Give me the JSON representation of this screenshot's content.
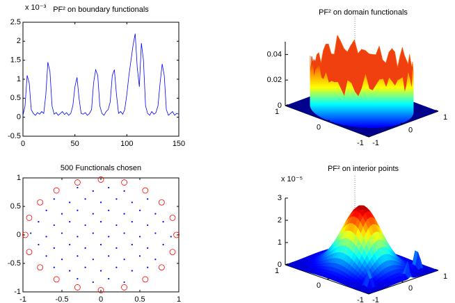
{
  "chart_data": [
    {
      "type": "line",
      "title": "PF² on boundary functionals",
      "y_multiplier": "x 10⁻³",
      "x": [
        0,
        2,
        4,
        6,
        8,
        10,
        12,
        14,
        16,
        18,
        20,
        22,
        24,
        26,
        28,
        30,
        32,
        34,
        36,
        38,
        40,
        42,
        44,
        46,
        48,
        50,
        52,
        54,
        56,
        58,
        60,
        62,
        64,
        66,
        68,
        70,
        72,
        74,
        76,
        78,
        80,
        82,
        84,
        86,
        88,
        90,
        92,
        94,
        96,
        98,
        100,
        102,
        104,
        106,
        108,
        110,
        112,
        114,
        116,
        118,
        120,
        122,
        124,
        126,
        128,
        130,
        132,
        134,
        136,
        138,
        140,
        142,
        144,
        146,
        148,
        150
      ],
      "series": [
        {
          "color": "#0000ff",
          "values": [
            0.05,
            0.3,
            1.1,
            0.9,
            0.2,
            0.1,
            0.05,
            0.12,
            0.08,
            0.15,
            0.1,
            0.6,
            1.45,
            1.2,
            0.3,
            0.08,
            0.12,
            0.05,
            0.1,
            0.15,
            0.07,
            0.12,
            0.05,
            0.1,
            0.3,
            0.8,
            1.05,
            0.5,
            0.1,
            0.08,
            0.12,
            0.05,
            0.1,
            0.2,
            0.9,
            1.25,
            1.1,
            0.3,
            0.1,
            0.05,
            0.15,
            0.2,
            0.4,
            1.1,
            1.25,
            0.6,
            0.1,
            0.15,
            0.08,
            0.2,
            0.6,
            1.1,
            1.5,
            1.9,
            2.2,
            1.3,
            0.8,
            1.95,
            1.5,
            0.3,
            0.1,
            0.05,
            0.15,
            0.08,
            0.12,
            0.3,
            0.9,
            1.4,
            1.1,
            0.2,
            0.05,
            0.1,
            0.15,
            0.05,
            0.1,
            0.08
          ]
        }
      ],
      "xlim": [
        0,
        150
      ],
      "xticks": [
        0,
        50,
        100,
        150
      ],
      "ylim": [
        -0.5,
        2.5
      ],
      "yticks": [
        -0.5,
        0,
        0.5,
        1,
        1.5,
        2,
        2.5
      ]
    },
    {
      "type": "surface3d",
      "title": "PF² on domain functionals",
      "xlim": [
        -1,
        1
      ],
      "xticks": [
        -1,
        0,
        1
      ],
      "ylim": [
        -1,
        1
      ],
      "yticks": [
        -1,
        0,
        1
      ],
      "zlim": [
        0,
        0.05
      ],
      "zticks": [
        0,
        0.02,
        0.04
      ]
    },
    {
      "type": "scatter",
      "title": "500 Functionals chosen",
      "series": [
        {
          "color": "#0000ff",
          "marker": "dot",
          "x": [
            -0.3,
            -0.1,
            0.1,
            0.3,
            -0.6,
            -0.4,
            -0.2,
            0,
            0.2,
            0.4,
            0.6,
            -0.7,
            -0.5,
            -0.3,
            -0.1,
            0.1,
            0.3,
            0.5,
            0.7,
            -0.8,
            -0.6,
            -0.4,
            -0.2,
            0,
            0.2,
            0.4,
            0.6,
            0.8,
            -0.9,
            -0.7,
            -0.5,
            -0.3,
            -0.1,
            0.1,
            0.3,
            0.5,
            0.7,
            0.9,
            -0.8,
            -0.6,
            -0.4,
            -0.2,
            0,
            0.2,
            0.4,
            0.6,
            0.8,
            -0.7,
            -0.5,
            -0.3,
            -0.1,
            0.1,
            0.3,
            0.5,
            0.7,
            -0.6,
            -0.4,
            -0.2,
            0,
            0.2,
            0.4,
            0.6,
            -0.3,
            -0.1,
            0.1,
            0.3
          ],
          "y": [
            -0.77,
            -0.83,
            -0.77,
            -0.83,
            -0.57,
            -0.63,
            -0.57,
            -0.63,
            -0.57,
            -0.63,
            -0.57,
            -0.37,
            -0.43,
            -0.37,
            -0.43,
            -0.37,
            -0.43,
            -0.37,
            -0.43,
            -0.17,
            -0.23,
            -0.17,
            -0.23,
            -0.17,
            -0.23,
            -0.17,
            -0.23,
            -0.17,
            0.03,
            -0.03,
            0.03,
            -0.03,
            0.03,
            -0.03,
            0.03,
            -0.03,
            0.03,
            -0.03,
            0.23,
            0.17,
            0.23,
            0.17,
            0.23,
            0.17,
            0.23,
            0.17,
            0.23,
            0.43,
            0.37,
            0.43,
            0.37,
            0.43,
            0.37,
            0.43,
            0.37,
            0.63,
            0.57,
            0.63,
            0.57,
            0.63,
            0.57,
            0.63,
            0.83,
            0.77,
            0.83,
            0.77
          ]
        },
        {
          "color": "#ff0000",
          "marker": "circle",
          "x": [
            0.97,
            0.92,
            0.78,
            0.57,
            0.3,
            0,
            -0.3,
            -0.57,
            -0.78,
            -0.92,
            -0.97,
            -0.92,
            -0.78,
            -0.57,
            -0.3,
            0,
            0.3,
            0.57,
            0.78,
            0.92
          ],
          "y": [
            0,
            0.3,
            0.57,
            0.78,
            0.92,
            0.97,
            0.92,
            0.78,
            0.57,
            0.3,
            0,
            -0.3,
            -0.57,
            -0.78,
            -0.92,
            -0.97,
            -0.92,
            -0.78,
            -0.57,
            -0.3
          ]
        }
      ],
      "xlim": [
        -1,
        1
      ],
      "xticks": [
        -1,
        -0.5,
        0,
        0.5,
        1
      ],
      "ylim": [
        -1,
        1
      ],
      "yticks": [
        -1,
        -0.5,
        0,
        0.5,
        1
      ]
    },
    {
      "type": "surface3d",
      "title": "PF² on interior points",
      "z_multiplier": "x 10⁻⁵",
      "xlim": [
        -1,
        1
      ],
      "xticks": [
        -1,
        0,
        1
      ],
      "ylim": [
        -1,
        1
      ],
      "yticks": [
        -1,
        0,
        1
      ],
      "zlim": [
        0,
        3
      ],
      "zticks": [
        0,
        1,
        2,
        3
      ]
    }
  ]
}
